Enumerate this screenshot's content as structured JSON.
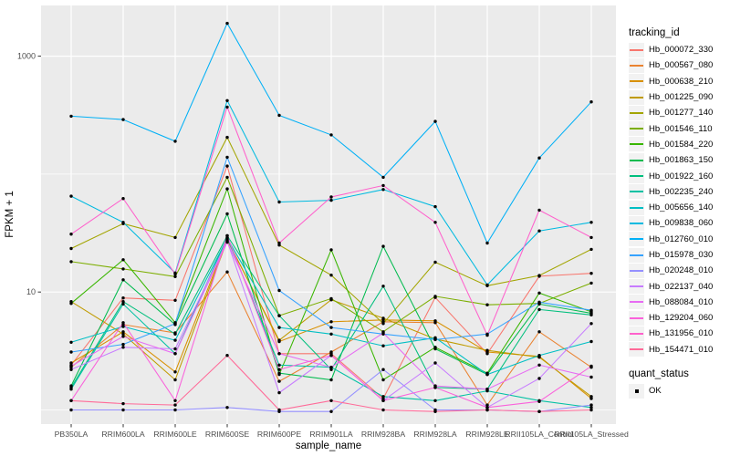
{
  "figure": {
    "panel_bg": "#EBEBEB",
    "grid_color": "#FFFFFF",
    "tick_color": "#333333",
    "tick_label_color": "#4D4D4D",
    "point_color": "#000000",
    "legend_key_bg": "#F2F2F2"
  },
  "chart_data": {
    "type": "line",
    "title": "",
    "xlabel": "sample_name",
    "ylabel": "FPKM + 1",
    "y_scale": "log10",
    "ylim": [
      0.75,
      2800
    ],
    "y_ticks": [
      {
        "value": 10,
        "label": "10"
      },
      {
        "value": 1000,
        "label": "1000"
      }
    ],
    "y_minor_gridlines": [
      1,
      100
    ],
    "grid": "on",
    "legend_position": "right",
    "categories": [
      "PB350LA",
      "RRIM600LA",
      "RRIM600LE",
      "RRIM600SE",
      "RRIM600PE",
      "RRIM901LA",
      "RRIM928BA",
      "RRIM928LA",
      "RRIM928LE",
      "RRII105LA_Control",
      "RRII105LA_Stressed"
    ],
    "series": [
      {
        "name": "Hb_000072_330",
        "color": "#F8766D",
        "values": [
          2.4,
          8.9,
          8.5,
          117,
          3.0,
          3.0,
          1.25,
          9.0,
          3.0,
          13.6,
          14.4
        ]
      },
      {
        "name": "Hb_000567_080",
        "color": "#EA8331",
        "values": [
          2.3,
          5.3,
          4.5,
          14.8,
          1.75,
          3.1,
          5.6,
          5.5,
          1.1,
          4.6,
          2.3
        ]
      },
      {
        "name": "Hb_000638_210",
        "color": "#D89000",
        "values": [
          2.5,
          4.6,
          2.1,
          28,
          3.8,
          5.6,
          5.8,
          5.7,
          3.1,
          2.85,
          1.25
        ]
      },
      {
        "name": "Hb_001225_090",
        "color": "#C09B00",
        "values": [
          8.3,
          4.4,
          1.8,
          27.5,
          3.9,
          8.6,
          6.0,
          4.0,
          3.2,
          2.8,
          1.3
        ]
      },
      {
        "name": "Hb_001277_140",
        "color": "#A3A500",
        "values": [
          23.4,
          38,
          29,
          205,
          25,
          13.9,
          5.4,
          17.9,
          11.3,
          13.8,
          23
        ]
      },
      {
        "name": "Hb_001546_110",
        "color": "#7CAE00",
        "values": [
          18.1,
          15.7,
          13.5,
          94,
          6.3,
          8.8,
          4.6,
          9.2,
          7.8,
          8.0,
          11.9
        ]
      },
      {
        "name": "Hb_001584_220",
        "color": "#39B600",
        "values": [
          8.0,
          18.8,
          5.5,
          75,
          2.0,
          22.8,
          1.8,
          3.4,
          2.05,
          9.8,
          6.8
        ]
      },
      {
        "name": "Hb_001863_150",
        "color": "#00BB4E",
        "values": [
          1.6,
          12.7,
          5.3,
          46,
          2.05,
          1.8,
          24.4,
          3.3,
          2.0,
          7.9,
          6.6
        ]
      },
      {
        "name": "Hb_001922_160",
        "color": "#00BF7D",
        "values": [
          1.55,
          8.3,
          4.4,
          30,
          6.3,
          2.2,
          11.2,
          1.55,
          1.5,
          7.1,
          6.4
        ]
      },
      {
        "name": "Hb_002235_240",
        "color": "#00C1A3",
        "values": [
          1.5,
          7.9,
          3.0,
          29,
          2.4,
          2.3,
          1.3,
          1.2,
          1.45,
          1.2,
          1.05
        ]
      },
      {
        "name": "Hb_005656_140",
        "color": "#00BFC4",
        "values": [
          3.75,
          5.1,
          3.9,
          28.5,
          5.0,
          4.4,
          3.5,
          4.1,
          2.0,
          2.9,
          3.8
        ]
      },
      {
        "name": "Hb_009838_060",
        "color": "#00BAE0",
        "values": [
          65,
          39,
          14.5,
          420,
          58,
          60,
          74,
          53,
          11.5,
          33,
          39
        ]
      },
      {
        "name": "Hb_012760_010",
        "color": "#00B0F6",
        "values": [
          310,
          290,
          190,
          1900,
          315,
          215,
          94,
          280,
          26,
          137,
          410
        ]
      },
      {
        "name": "Hb_015978_030",
        "color": "#35A2FF",
        "values": [
          3.1,
          3.6,
          5.4,
          139,
          10.3,
          5.0,
          4.4,
          3.95,
          4.4,
          8.2,
          7.0
        ]
      },
      {
        "name": "Hb_020248_010",
        "color": "#9590FF",
        "values": [
          1.0,
          1.0,
          1.0,
          1.05,
          0.97,
          0.97,
          2.2,
          1.0,
          1.0,
          0.97,
          1.1
        ]
      },
      {
        "name": "Hb_022137_040",
        "color": "#C77CFF",
        "values": [
          2.2,
          3.4,
          3.3,
          27,
          1.4,
          2.9,
          1.2,
          2.5,
          1.05,
          1.85,
          5.4
        ]
      },
      {
        "name": "Hb_088084_010",
        "color": "#E76BF3",
        "values": [
          2.35,
          4.2,
          3.0,
          26.5,
          3.0,
          2.3,
          4.5,
          1.6,
          1.5,
          2.4,
          1.9
        ]
      },
      {
        "name": "Hb_129204_060",
        "color": "#FA62DB",
        "values": [
          1.2,
          5.5,
          1.2,
          30,
          2.2,
          2.9,
          1.2,
          1.55,
          1.05,
          1.18,
          2.35
        ]
      },
      {
        "name": "Hb_131956_010",
        "color": "#FF61CC",
        "values": [
          31,
          62,
          14.2,
          370,
          26,
          64,
          80,
          39,
          4.3,
          49.5,
          29
        ]
      },
      {
        "name": "Hb_154471_010",
        "color": "#FF6A98",
        "values": [
          1.2,
          1.13,
          1.1,
          2.9,
          1.0,
          1.2,
          1.0,
          0.97,
          1.0,
          0.97,
          1.0
        ]
      }
    ]
  },
  "legend": {
    "tracking_title": "tracking_id",
    "quant_title": "quant_status",
    "quant_items": [
      {
        "label": "OK",
        "marker": "black-square"
      }
    ]
  }
}
